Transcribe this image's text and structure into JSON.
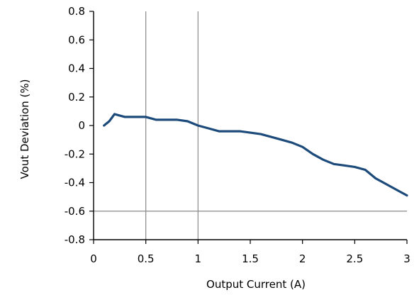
{
  "chart_data": {
    "type": "line",
    "title": "",
    "xlabel": "Output Current (A)",
    "ylabel": "Vout Deviation (%)",
    "xlim": [
      0,
      3
    ],
    "ylim": [
      -0.8,
      0.8
    ],
    "xticks": [
      0,
      0.5,
      1,
      1.5,
      2,
      2.5,
      3
    ],
    "xtick_labels": [
      "0",
      "0.5",
      "1",
      "1.5",
      "2",
      "2.5",
      "3"
    ],
    "yticks": [
      -0.8,
      -0.6,
      -0.4,
      -0.2,
      0,
      0.2,
      0.4,
      0.6,
      0.8
    ],
    "ytick_labels": [
      "-0.8",
      "-0.6",
      "-0.4",
      "-0.2",
      "0",
      "0.2",
      "0.4",
      "0.6",
      "0.8"
    ],
    "grid": "vertical at 0.5 and 1, horizontal at -0.6",
    "grid_color": "#8a8a8a",
    "line_color": "#1c4a7a",
    "series": [
      {
        "x": [
          0.1,
          0.15,
          0.2,
          0.25,
          0.3,
          0.4,
          0.5,
          0.6,
          0.7,
          0.8,
          0.9,
          1.0,
          1.1,
          1.2,
          1.3,
          1.4,
          1.5,
          1.6,
          1.7,
          1.8,
          1.9,
          2.0,
          2.1,
          2.2,
          2.3,
          2.4,
          2.5,
          2.6,
          2.7,
          2.8,
          2.9,
          3.0
        ],
        "y": [
          0.0,
          0.03,
          0.08,
          0.07,
          0.06,
          0.06,
          0.06,
          0.04,
          0.04,
          0.04,
          0.03,
          0.0,
          -0.02,
          -0.04,
          -0.04,
          -0.04,
          -0.05,
          -0.06,
          -0.08,
          -0.1,
          -0.12,
          -0.15,
          -0.2,
          -0.24,
          -0.27,
          -0.28,
          -0.29,
          -0.31,
          -0.37,
          -0.41,
          -0.45,
          -0.49
        ]
      }
    ]
  }
}
